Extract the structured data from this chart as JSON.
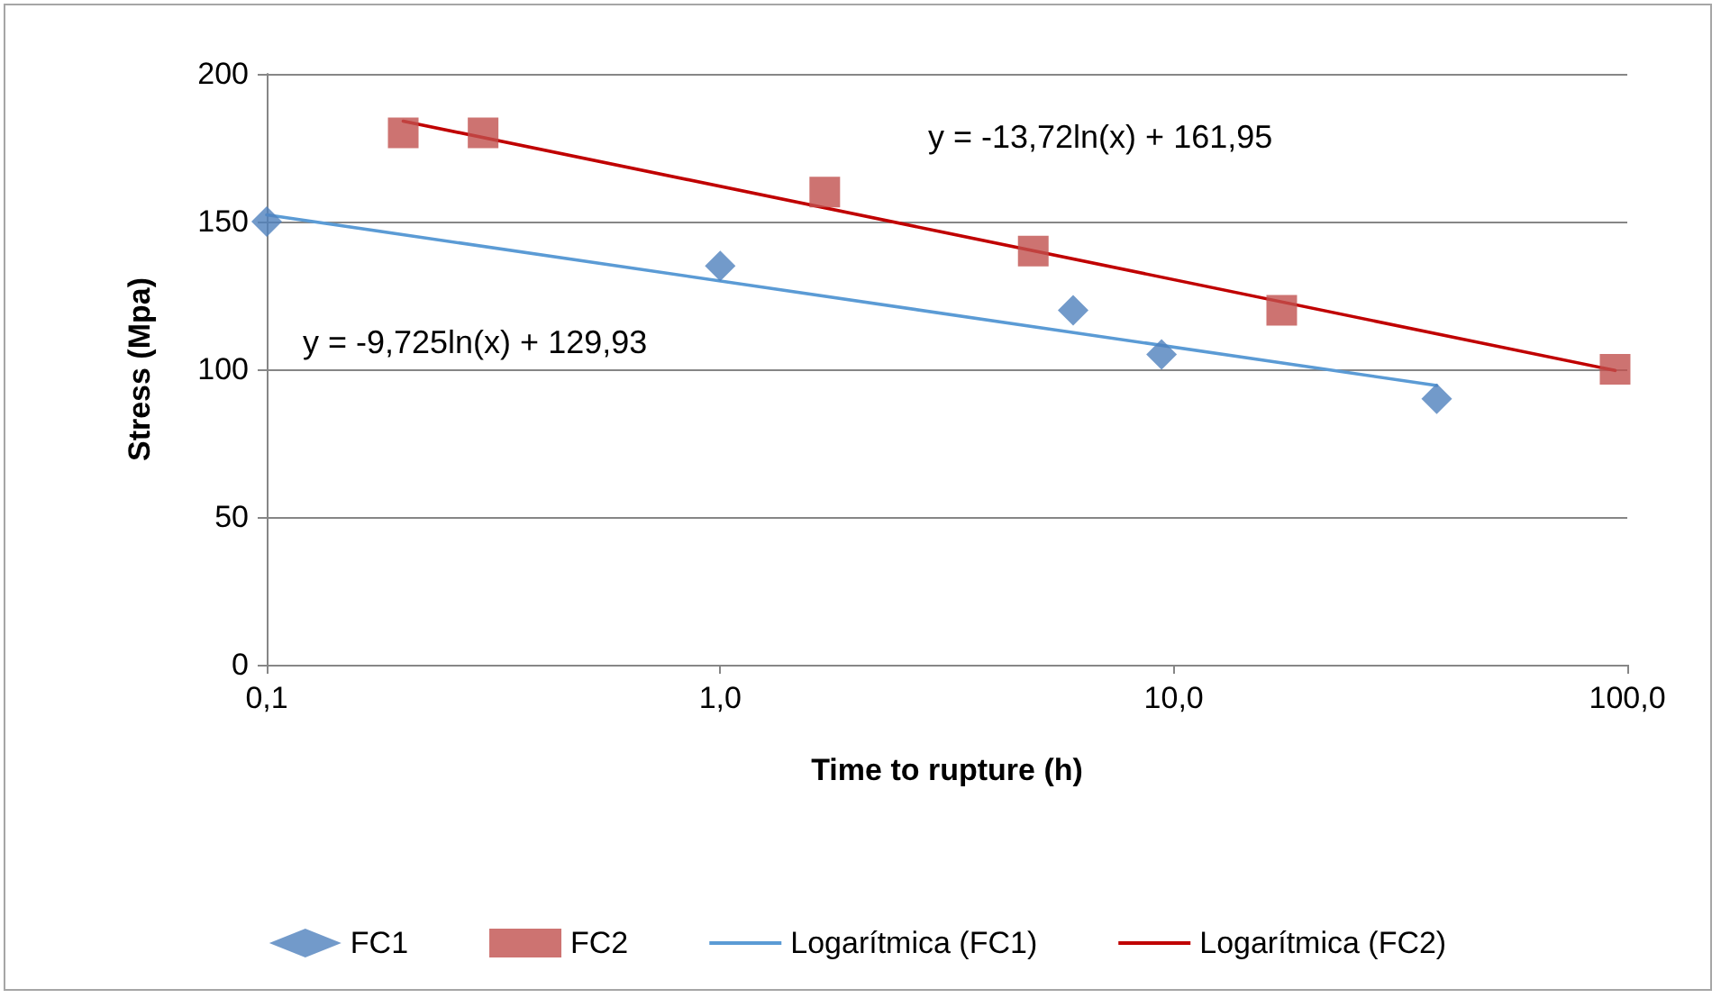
{
  "chart_data": {
    "type": "scatter",
    "xlabel": "Time to rupture (h)",
    "ylabel": "Stress (Mpa)",
    "log": "x",
    "xlim": [
      0.1,
      100
    ],
    "xticks": [
      {
        "value": 0.1,
        "label": "0,1"
      },
      {
        "value": 1,
        "label": "1,0"
      },
      {
        "value": 10,
        "label": "10,0"
      },
      {
        "value": 100,
        "label": "100,0"
      }
    ],
    "ylim": [
      0,
      200
    ],
    "yticks": [
      0,
      50,
      100,
      150,
      200
    ],
    "grid": "y",
    "legend": "bottom",
    "annotations": [
      "y = -13,72ln(x) + 161,95",
      "y = -9,725ln(x) + 129,93"
    ],
    "series": [
      {
        "name": "FC1",
        "marker": "diamond",
        "color": "#4f81bd",
        "x": [
          0.1,
          1.0,
          6.0,
          9.4,
          38
        ],
        "values": [
          150,
          135,
          120,
          105,
          90
        ]
      },
      {
        "name": "FC2",
        "marker": "square",
        "color": "#c0504d",
        "x": [
          0.2,
          0.3,
          1.7,
          4.9,
          17.3,
          94
        ],
        "values": [
          180,
          180,
          160,
          140,
          120,
          100
        ]
      },
      {
        "name": "Logarítmica (FC1)",
        "type": "line",
        "marker": "none",
        "line_style": "solid",
        "color": "#5b9bd5",
        "x": [
          0.1,
          38
        ],
        "values": [
          152.3,
          94.5
        ]
      },
      {
        "name": "Logarítmica (FC2)",
        "type": "line",
        "marker": "none",
        "line_style": "solid",
        "color": "#c00000",
        "x": [
          0.2,
          94
        ],
        "values": [
          184.0,
          99.6
        ]
      }
    ]
  }
}
